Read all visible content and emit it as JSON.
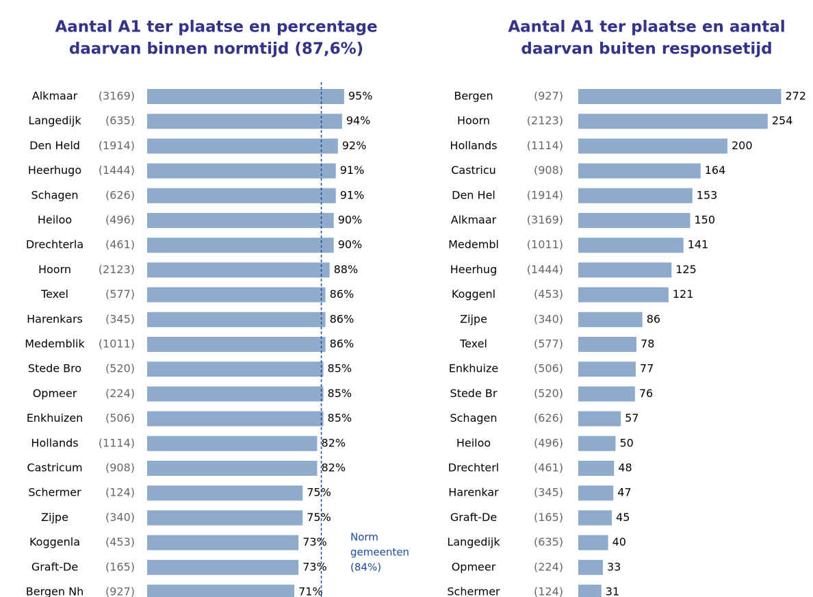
{
  "chart_data": [
    {
      "type": "bar",
      "orientation": "horizontal",
      "title": [
        "Aantal A1 ter plaatse en percentage",
        "daarvan binnen normtijd (87,6%)"
      ],
      "categories": [
        "Alkmaar",
        "Langedijk",
        "Den Held",
        "Heerhugo",
        "Schagen",
        "Heiloo",
        "Drechterla",
        "Hoorn",
        "Texel",
        "Harenkars",
        "Medemblik",
        "Stede Bro",
        "Opmeer",
        "Enkhuizen",
        "Hollands",
        "Castricum",
        "Schermer",
        "Zijpe",
        "Koggenla",
        "Graft-De",
        "Bergen Nh"
      ],
      "counts": [
        "(3169)",
        "(635)",
        "(1914)",
        "(1444)",
        "(626)",
        "(496)",
        "(461)",
        "(2123)",
        "(577)",
        "(345)",
        "(1011)",
        "(520)",
        "(224)",
        "(506)",
        "(1114)",
        "(908)",
        "(124)",
        "(340)",
        "(453)",
        "(165)",
        "(927)"
      ],
      "values": [
        95,
        94,
        92,
        91,
        91,
        90,
        90,
        88,
        86,
        86,
        86,
        85,
        85,
        85,
        82,
        82,
        75,
        75,
        73,
        73,
        71
      ],
      "value_labels": [
        "95%",
        "94%",
        "92%",
        "91%",
        "91%",
        "90%",
        "90%",
        "88%",
        "86%",
        "86%",
        "86%",
        "85%",
        "85%",
        "85%",
        "82%",
        "82%",
        "75%",
        "75%",
        "73%",
        "73%",
        "71%"
      ],
      "color": "#8eaacd",
      "xlim": [
        0,
        100
      ],
      "norm": 84,
      "norm_label": [
        "Norm",
        "gemeenten",
        "(84%)"
      ]
    },
    {
      "type": "bar",
      "orientation": "horizontal",
      "title": [
        "Aantal A1 ter plaatse en aantal",
        "daarvan buiten responsetijd"
      ],
      "categories": [
        "Bergen",
        "Hoorn",
        "Hollands",
        "Castricu",
        "Den Hel",
        "Alkmaar",
        "Medembl",
        "Heerhug",
        "Koggenl",
        "Zijpe",
        "Texel",
        "Enkhuize",
        "Stede Br",
        "Schagen",
        "Heiloo",
        "Drechterl",
        "Harenkar",
        "Graft-De",
        "Langedijk",
        "Opmeer",
        "Schermer"
      ],
      "counts": [
        "(927)",
        "(2123)",
        "(1114)",
        "(908)",
        "(1914)",
        "(3169)",
        "(1011)",
        "(1444)",
        "(453)",
        "(340)",
        "(577)",
        "(506)",
        "(520)",
        "(626)",
        "(496)",
        "(461)",
        "(345)",
        "(165)",
        "(635)",
        "(224)",
        "(124)"
      ],
      "values": [
        272,
        254,
        200,
        164,
        153,
        150,
        141,
        125,
        121,
        86,
        78,
        77,
        76,
        57,
        50,
        48,
        47,
        45,
        40,
        33,
        31
      ],
      "color": "#8eaacd",
      "xlim": [
        0,
        300
      ]
    }
  ]
}
